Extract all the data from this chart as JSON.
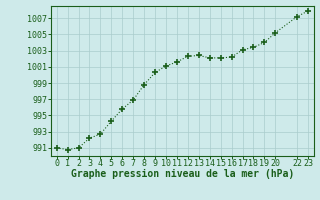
{
  "x": [
    0,
    1,
    2,
    3,
    4,
    5,
    6,
    7,
    8,
    9,
    10,
    11,
    12,
    13,
    14,
    15,
    16,
    17,
    18,
    19,
    20,
    22,
    23
  ],
  "y": [
    991.0,
    990.8,
    991.0,
    992.2,
    992.7,
    994.3,
    995.8,
    996.9,
    998.8,
    1000.3,
    1001.1,
    1001.6,
    1002.3,
    1002.4,
    1002.1,
    1002.1,
    1002.2,
    1003.1,
    1003.4,
    1004.0,
    1005.2,
    1007.2,
    1007.9
  ],
  "line_color": "#1a5e1a",
  "marker": "+",
  "marker_size": 4,
  "background_color": "#ceeaea",
  "grid_color": "#aacccc",
  "xlabel": "Graphe pression niveau de la mer (hPa)",
  "ylabel": "",
  "ylim": [
    990.0,
    1008.5
  ],
  "xlim": [
    -0.5,
    23.5
  ],
  "yticks": [
    991,
    993,
    995,
    997,
    999,
    1001,
    1003,
    1005,
    1007
  ],
  "xticks": [
    0,
    1,
    2,
    3,
    4,
    5,
    6,
    7,
    8,
    9,
    10,
    11,
    12,
    13,
    14,
    15,
    16,
    17,
    18,
    19,
    20,
    22,
    23
  ],
  "tick_label_fontsize": 6.0,
  "xlabel_fontsize": 7.0,
  "spine_color": "#1a5e1a",
  "title": ""
}
